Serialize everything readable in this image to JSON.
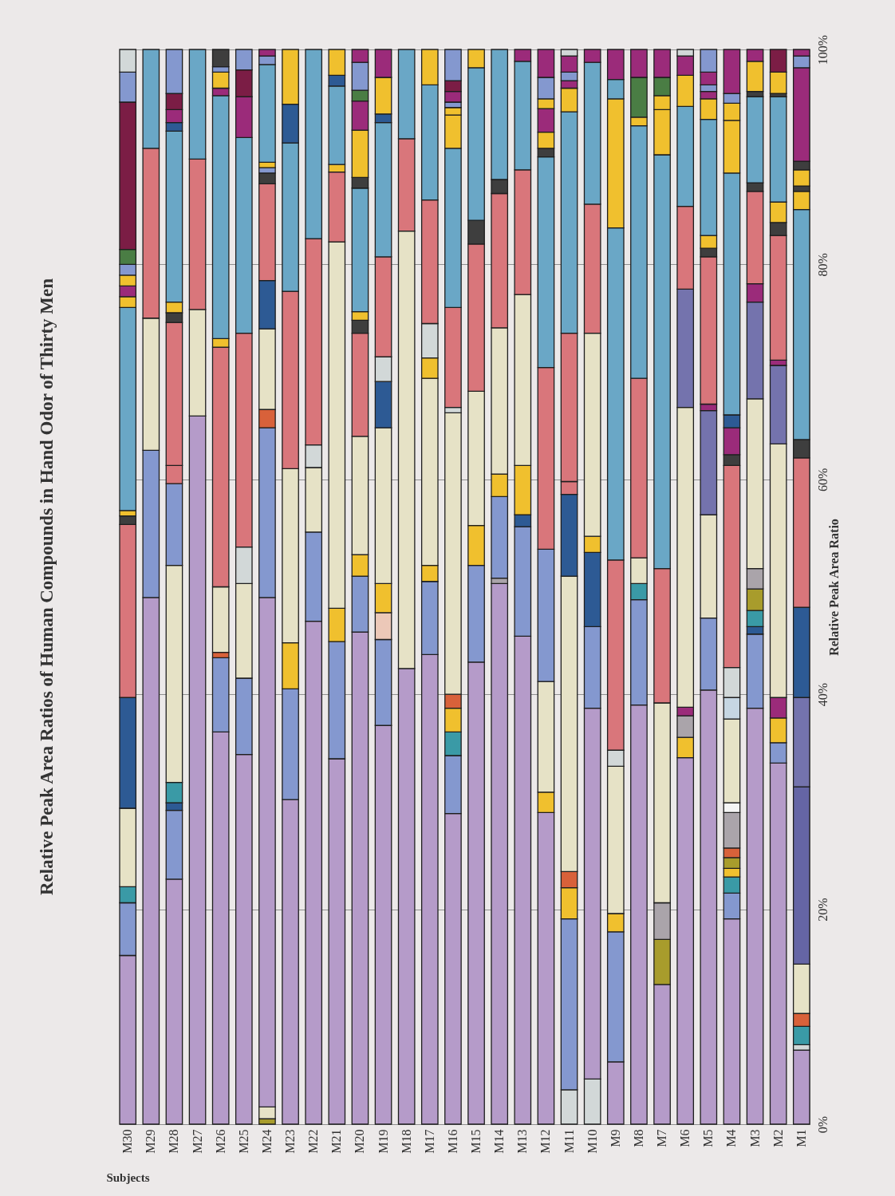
{
  "chart_data": {
    "type": "bar",
    "stacked": true,
    "title": "Relative Peak Area Ratios of Human Compounds in Hand Odor of Thirty Men",
    "xlabel": "Subjects",
    "ylabel": "Relative Peak Area Ratio",
    "categories": [
      "M30",
      "M29",
      "M28",
      "M27",
      "M26",
      "M25",
      "M24",
      "M23",
      "M22",
      "M21",
      "M20",
      "M19",
      "M18",
      "M17",
      "M16",
      "M15",
      "M14",
      "M13",
      "M12",
      "M11",
      "M10",
      "M9",
      "M8",
      "M7",
      "M6",
      "M5",
      "M4",
      "M3",
      "M2",
      "M1"
    ],
    "ylim": [
      0,
      100
    ],
    "yticks": [
      {
        "value": 0,
        "label": "0%"
      },
      {
        "value": 20,
        "label": "20%"
      },
      {
        "value": 40,
        "label": "40%"
      },
      {
        "value": 60,
        "label": "60%"
      },
      {
        "value": 80,
        "label": "80%"
      },
      {
        "value": 100,
        "label": "100%"
      }
    ],
    "grid": "y",
    "series": [
      {
        "values": [
          15.7,
          49.0,
          22.8,
          65.9,
          36.5,
          34.4,
          0.5,
          30.2,
          46.8,
          34.0,
          45.8,
          37.1,
          42.4,
          43.7,
          28.9,
          43.0,
          50.3,
          45.4,
          29.0,
          3.2,
          4.2,
          5.8,
          39.0,
          13.0,
          34.1,
          40.4,
          19.1,
          38.7,
          33.6,
          6.9
        ],
        "colors": [
          "#b59bc9",
          "#b59bc9",
          "#b59bc9",
          "#b59bc9",
          "#b59bc9",
          "#b59bc9",
          "#a89c2c",
          "#b59bc9",
          "#b59bc9",
          "#b59bc9",
          "#b59bc9",
          "#b59bc9",
          "#b59bc9",
          "#b59bc9",
          "#b59bc9",
          "#b59bc9",
          "#b59bc9",
          "#b59bc9",
          "#b59bc9",
          "#d2d8d8",
          "#d2d8d8",
          "#b59bc9",
          "#b59bc9",
          "#b59bc9",
          "#b59bc9",
          "#b59bc9",
          "#b59bc9",
          "#b59bc9",
          "#b59bc9",
          "#b59bc9"
        ]
      },
      {
        "values": [
          4.9,
          13.7,
          6.4,
          9.9,
          6.9,
          7.1,
          1.1,
          10.3,
          8.3,
          10.9,
          5.2,
          8.0,
          40.7,
          6.8,
          5.4,
          9.0,
          0.5,
          10.2,
          1.9,
          15.9,
          34.5,
          12.1,
          9.8,
          4.2,
          1.9,
          6.7,
          2.4,
          6.9,
          1.9,
          0.5
        ],
        "colors": [
          "#8498cf",
          "#8498cf",
          "#8498cf",
          "#e6e2c6",
          "#8498cf",
          "#8498cf",
          "#e6e2c6",
          "#8498cf",
          "#8498cf",
          "#8498cf",
          "#8498cf",
          "#8498cf",
          "#e6e2c6",
          "#8498cf",
          "#8498cf",
          "#8498cf",
          "#aaa4aa",
          "#8498cf",
          "#f0c02e",
          "#8498cf",
          "#b59bc9",
          "#8498cf",
          "#8498cf",
          "#a89c2c",
          "#f0c02e",
          "#8498cf",
          "#8498cf",
          "#8498cf",
          "#8498cf",
          "#d2d8d8"
        ]
      },
      {
        "values": [
          1.5,
          12.3,
          0.7,
          14.0,
          0.5,
          8.8,
          47.4,
          4.3,
          6.0,
          3.1,
          2.0,
          2.5,
          8.6,
          1.5,
          2.2,
          3.7,
          7.6,
          1.1,
          10.3,
          2.9,
          7.6,
          1.7,
          1.5,
          3.4,
          2.0,
          9.6,
          1.5,
          0.7,
          2.3,
          1.7
        ],
        "colors": [
          "#3a9aa6",
          "#e6e2c6",
          "#2d5a94",
          "#d9767b",
          "#d8613a",
          "#e6e2c6",
          "#b59bc9",
          "#f0c02e",
          "#e6e2c6",
          "#f0c02e",
          "#f0c02e",
          "#ecc8b8",
          "#d9767b",
          "#f0c02e",
          "#3a9aa6",
          "#f0c02e",
          "#8498cf",
          "#2d5a94",
          "#e6e2c6",
          "#f0c02e",
          "#8498cf",
          "#f0c02e",
          "#3a9aa6",
          "#aaa4aa",
          "#aaa4aa",
          "#e6e2c6",
          "#3a9aa6",
          "#2d5a94",
          "#f0c02e",
          "#3a9aa6"
        ]
      },
      {
        "values": [
          7.3,
          15.8,
          1.9,
          10.2,
          6.1,
          3.4,
          15.8,
          16.2,
          2.1,
          34.1,
          11.0,
          2.7,
          8.3,
          17.4,
          2.2,
          12.5,
          2.1,
          4.6,
          12.3,
          1.5,
          6.9,
          13.7,
          2.4,
          18.6,
          0.8,
          9.7,
          0.8,
          1.5,
          1.9,
          1.2
        ],
        "colors": [
          "#e6e2c6",
          "#d9767b",
          "#3a9aa6",
          "#6aa7c6",
          "#e6e2c6",
          "#d2d8d8",
          "#8498cf",
          "#e6e2c6",
          "#d2d8d8",
          "#e6e2c6",
          "#e6e2c6",
          "#f0c02e",
          "#6aa7c6",
          "#e6e2c6",
          "#f0c02e",
          "#e6e2c6",
          "#f0c02e",
          "#f0c02e",
          "#8498cf",
          "#d8613a",
          "#2d5a94",
          "#e6e2c6",
          "#e6e2c6",
          "#e6e2c6",
          "#9b2b7a",
          "#7473ad",
          "#f0c02e",
          "#3a9aa6",
          "#9b2b7a",
          "#d8613a"
        ]
      },
      {
        "values": [
          10.3,
          9.2,
          20.2,
          null,
          22.3,
          19.9,
          1.7,
          16.5,
          19.2,
          6.5,
          9.6,
          14.5,
          null,
          1.9,
          1.3,
          13.7,
          13.6,
          15.9,
          16.9,
          27.5,
          1.5,
          1.5,
          16.7,
          12.5,
          27.9,
          0.6,
          1.0,
          2.0,
          23.6,
          4.6
        ],
        "colors": [
          "#2d5a94",
          "#6aa7c6",
          "#e6e2c6",
          null,
          "#d9767b",
          "#d9767b",
          "#d8613a",
          "#d9767b",
          "#d9767b",
          "#d9767b",
          "#d9767b",
          "#e6e2c6",
          null,
          "#f0c02e",
          "#d8613a",
          "#d9767b",
          "#e6e2c6",
          "#e6e2c6",
          "#d9767b",
          "#e6e2c6",
          "#f0c02e",
          "#d2d8d8",
          "#d9767b",
          "#d9767b",
          "#e6e2c6",
          "#9b2b7a",
          "#a89c2c",
          "#a89c2c",
          "#e6e2c6",
          "#e6e2c6"
        ]
      },
      {
        "values": [
          16.1,
          null,
          7.6,
          null,
          0.8,
          18.2,
          7.5,
          13.8,
          17.6,
          0.7,
          1.2,
          4.3,
          null,
          3.2,
          26.2,
          2.2,
          12.5,
          11.6,
          19.6,
          7.6,
          18.9,
          17.7,
          23.5,
          38.5,
          11.0,
          13.7,
          0.9,
          1.9,
          7.3,
          16.5
        ],
        "colors": [
          "#d9767b",
          null,
          "#8498cf",
          null,
          "#f0c02e",
          "#6aa7c6",
          "#e6e2c6",
          "#6aa7c6",
          "#6aa7c6",
          "#f0c02e",
          "#3e3e3e",
          "#2d5a94",
          null,
          "#d2d8d8",
          "#e6e2c6",
          "#3e3e3e",
          "#d9767b",
          "#d9767b",
          "#6aa7c6",
          "#2d5a94",
          "#e6e2c6",
          "#d9767b",
          "#6aa7c6",
          "#6aa7c6",
          "#7473ad",
          "#d9767b",
          "#d8613a",
          "#aaa4aa",
          "#7473ad",
          "#6565a5"
        ]
      },
      {
        "values": [
          0.8,
          null,
          1.7,
          null,
          22.6,
          3.8,
          4.5,
          3.6,
          null,
          7.3,
          0.8,
          2.3,
          null,
          11.5,
          0.5,
          14.2,
          1.3,
          10.1,
          0.8,
          1.2,
          12.0,
          30.9,
          0.8,
          4.2,
          7.7,
          0.8,
          3.3,
          15.8,
          0.5,
          8.3
        ],
        "colors": [
          "#3e3e3e",
          null,
          "#d9767b",
          null,
          "#6aa7c6",
          "#9b2b7a",
          "#2d5a94",
          "#2d5a94",
          null,
          "#6aa7c6",
          "#f0c02e",
          "#d2d8d8",
          null,
          "#d9767b",
          "#d2d8d8",
          "#6aa7c6",
          "#3e3e3e",
          "#6aa7c6",
          "#3e3e3e",
          "#d9767b",
          "#d9767b",
          "#6aa7c6",
          "#f0c02e",
          "#f0c02e",
          "#d9767b",
          "#3e3e3e",
          "#aaa4aa",
          "#e6e2c6",
          "#9b2b7a",
          "#7473ad"
        ]
      },
      {
        "values": [
          0.5,
          null,
          13.3,
          null,
          0.7,
          2.5,
          9.0,
          5.1,
          null,
          1.0,
          11.5,
          9.3,
          null,
          10.7,
          9.3,
          1.7,
          12.1,
          1.1,
          1.5,
          13.8,
          13.2,
          12.0,
          3.7,
          1.3,
          9.3,
          1.2,
          0.9,
          9.0,
          11.6,
          8.4
        ],
        "colors": [
          "#f0c02e",
          null,
          "#d9767b",
          null,
          "#9b2b7a",
          "#7b1d45",
          "#d9767b",
          "#f0c02e",
          null,
          "#2d5a94",
          "#6aa7c6",
          "#d9767b",
          null,
          "#6aa7c6",
          "#d9767b",
          "#f0c02e",
          "#6aa7c6",
          "#9b2b7a",
          "#f0c02e",
          "#d9767b",
          "#6aa7c6",
          "#f0c02e",
          "#4a7d44",
          "#f0c02e",
          "#6aa7c6",
          "#f0c02e",
          "#f5f5f5",
          "#7473ad",
          "#d9767b",
          "#2d5a94"
        ]
      },
      {
        "values": [
          18.9,
          null,
          0.9,
          null,
          1.5,
          1.9,
          1.0,
          null,
          null,
          2.4,
          1.0,
          12.5,
          null,
          3.3,
          14.8,
          null,
          null,
          null,
          2.2,
          20.6,
          1.2,
          1.8,
          2.6,
          1.7,
          2.9,
          10.8,
          7.8,
          1.7,
          1.2,
          13.9
        ],
        "colors": [
          "#6aa7c6",
          null,
          "#3e3e3e",
          null,
          "#f0c02e",
          "#8498cf",
          "#3e3e3e",
          null,
          null,
          "#f0c02e",
          "#3e3e3e",
          "#6aa7c6",
          null,
          "#f0c02e",
          "#6aa7c6",
          null,
          null,
          null,
          "#9b2b7a",
          "#6aa7c6",
          "#9b2b7a",
          "#6aa7c6",
          "#9b2b7a",
          "#4a7d44",
          "#f0c02e",
          "#6aa7c6",
          "#e6e2c6",
          "#9b2b7a",
          "#3e3e3e",
          "#d9767b"
        ]
      },
      {
        "values": [
          1.0,
          null,
          1.0,
          null,
          0.5,
          null,
          0.5,
          null,
          null,
          null,
          4.4,
          0.8,
          null,
          null,
          3.1,
          null,
          null,
          null,
          0.9,
          2.2,
          null,
          2.8,
          null,
          2.6,
          1.8,
          1.9,
          2.0,
          8.6,
          1.9,
          1.7
        ],
        "colors": [
          "#f0c02e",
          null,
          "#f0c02e",
          null,
          "#8498cf",
          null,
          "#8498cf",
          null,
          null,
          null,
          "#f0c02e",
          "#2d5a94",
          null,
          null,
          "#f0c02e",
          null,
          null,
          null,
          "#f0c02e",
          "#f0c02e",
          null,
          "#9b2b7a",
          null,
          "#9b2b7a",
          "#9b2b7a",
          "#f0c02e",
          "#c6d6e2",
          "#d9767b",
          "#f0c02e",
          "#3e3e3e"
        ]
      },
      {
        "values": [
          1.0,
          null,
          15.9,
          null,
          1.6,
          null,
          0.5,
          null,
          null,
          null,
          2.7,
          3.4,
          null,
          null,
          0.7,
          null,
          null,
          null,
          2.0,
          0.7,
          null,
          null,
          null,
          null,
          0.6,
          0.7,
          2.8,
          0.8,
          9.8,
          21.4
        ],
        "colors": [
          "#9b2b7a",
          null,
          "#6aa7c6",
          null,
          "#3e3e3e",
          null,
          "#f0c02e",
          null,
          null,
          null,
          "#9b2b7a",
          "#f0c02e",
          null,
          null,
          "#f0c02e",
          null,
          null,
          null,
          "#8498cf",
          "#9b2b7a",
          null,
          null,
          null,
          null,
          "#d2d8d8",
          "#9b2b7a",
          "#d2d8d8",
          "#3e3e3e",
          "#6aa7c6",
          "#6aa7c6"
        ]
      },
      {
        "values": [
          1.0,
          null,
          0.8,
          null,
          null,
          null,
          9.1,
          null,
          null,
          null,
          1.0,
          2.6,
          null,
          null,
          0.5,
          null,
          null,
          null,
          2.6,
          0.8,
          null,
          null,
          null,
          null,
          null,
          0.6,
          18.8,
          8.0,
          0.3,
          1.7
        ],
        "colors": [
          "#f0c02e",
          null,
          "#2d5a94",
          null,
          null,
          null,
          "#6aa7c6",
          null,
          null,
          null,
          "#4a7d44",
          "#9b2b7a",
          null,
          null,
          "#8498cf",
          null,
          null,
          null,
          "#9b2b7a",
          "#8498cf",
          null,
          null,
          null,
          null,
          null,
          "#8498cf",
          "#d9767b",
          "#6aa7c6",
          "#3e3e3e",
          "#f0c02e"
        ]
      },
      {
        "values": [
          1.0,
          null,
          1.2,
          null,
          null,
          null,
          0.8,
          null,
          null,
          null,
          2.6,
          null,
          null,
          null,
          1.0,
          null,
          null,
          null,
          null,
          1.5,
          null,
          null,
          null,
          null,
          null,
          1.2,
          1.0,
          0.5,
          2.0,
          0.5
        ],
        "colors": [
          "#8498cf",
          null,
          "#9b2b7a",
          null,
          null,
          null,
          "#8498cf",
          null,
          null,
          null,
          "#8498cf",
          null,
          null,
          null,
          "#9b2b7a",
          null,
          null,
          null,
          null,
          "#9b2b7a",
          null,
          null,
          null,
          null,
          null,
          "#9b2b7a",
          "#3e3e3e",
          "#3e3e3e",
          "#f0c02e",
          "#3e3e3e"
        ]
      },
      {
        "values": [
          1.4,
          null,
          1.5,
          null,
          null,
          null,
          0.6,
          null,
          null,
          null,
          1.2,
          null,
          null,
          null,
          1.0,
          null,
          null,
          null,
          null,
          0.6,
          null,
          null,
          null,
          null,
          null,
          2.1,
          2.5,
          2.8,
          2.1,
          1.5
        ],
        "colors": [
          "#4a7d44",
          null,
          "#7b1d45",
          null,
          null,
          null,
          "#9b2b7a",
          null,
          null,
          null,
          "#9b2b7a",
          null,
          null,
          null,
          "#7b1d45",
          null,
          null,
          null,
          null,
          "#d2d8d8",
          null,
          null,
          null,
          null,
          null,
          "#8498cf",
          "#9b2b7a",
          "#f0c02e",
          "#7b1d45",
          "#f0c02e"
        ]
      },
      {
        "values": [
          13.7,
          null,
          4.1,
          null,
          null,
          null,
          null,
          null,
          null,
          null,
          null,
          null,
          null,
          null,
          2.9,
          null,
          null,
          null,
          null,
          null,
          null,
          null,
          null,
          null,
          null,
          null,
          1.2,
          1.1,
          null,
          0.8
        ],
        "colors": [
          "#7b1d45",
          null,
          "#8498cf",
          null,
          null,
          null,
          null,
          null,
          null,
          null,
          null,
          null,
          null,
          null,
          "#8498cf",
          null,
          null,
          null,
          null,
          null,
          null,
          null,
          null,
          null,
          null,
          null,
          "#2d5a94",
          "#9b2b7a",
          null,
          "#3e3e3e"
        ]
      },
      {
        "values": [
          2.8,
          null,
          null,
          null,
          null,
          null,
          null,
          null,
          null,
          null,
          null,
          null,
          null,
          null,
          null,
          null,
          null,
          null,
          null,
          null,
          null,
          null,
          null,
          null,
          null,
          null,
          22.5,
          null,
          null,
          8.7
        ],
        "colors": [
          "#8498cf",
          null,
          null,
          null,
          null,
          null,
          null,
          null,
          null,
          null,
          null,
          null,
          null,
          null,
          null,
          null,
          null,
          null,
          null,
          null,
          null,
          null,
          null,
          null,
          null,
          null,
          "#6aa7c6",
          null,
          null,
          "#9b2b7a"
        ]
      },
      {
        "values": [
          2.1,
          null,
          null,
          null,
          null,
          null,
          null,
          null,
          null,
          null,
          null,
          null,
          null,
          null,
          null,
          null,
          null,
          null,
          null,
          null,
          null,
          null,
          null,
          null,
          null,
          null,
          4.9,
          null,
          null,
          1.1
        ],
        "colors": [
          "#d2d8d8",
          null,
          null,
          null,
          null,
          null,
          null,
          null,
          null,
          null,
          null,
          null,
          null,
          null,
          null,
          null,
          null,
          null,
          null,
          null,
          null,
          null,
          null,
          null,
          null,
          null,
          "#f0c02e",
          null,
          null,
          "#8498cf"
        ]
      },
      {
        "values": [
          null,
          null,
          null,
          null,
          null,
          null,
          null,
          null,
          null,
          null,
          null,
          null,
          null,
          null,
          null,
          null,
          null,
          null,
          null,
          null,
          null,
          null,
          null,
          null,
          null,
          null,
          1.6,
          null,
          null,
          0.6
        ],
        "colors": [
          null,
          null,
          null,
          null,
          null,
          null,
          null,
          null,
          null,
          null,
          null,
          null,
          null,
          null,
          null,
          null,
          null,
          null,
          null,
          null,
          null,
          null,
          null,
          null,
          null,
          null,
          "#f0c02e",
          null,
          null,
          "#9b2b7a"
        ]
      },
      {
        "values": [
          null,
          null,
          null,
          null,
          null,
          null,
          null,
          null,
          null,
          null,
          null,
          null,
          null,
          null,
          null,
          null,
          null,
          null,
          null,
          null,
          null,
          null,
          null,
          null,
          null,
          null,
          0.9,
          null,
          null,
          null
        ],
        "colors": [
          null,
          null,
          null,
          null,
          null,
          null,
          null,
          null,
          null,
          null,
          null,
          null,
          null,
          null,
          null,
          null,
          null,
          null,
          null,
          null,
          null,
          null,
          null,
          null,
          null,
          null,
          "#8498cf",
          null,
          null,
          null
        ]
      },
      {
        "values": [
          null,
          null,
          null,
          null,
          null,
          null,
          null,
          null,
          null,
          null,
          null,
          null,
          null,
          null,
          null,
          null,
          null,
          null,
          null,
          null,
          null,
          null,
          null,
          null,
          null,
          null,
          4.1,
          null,
          null,
          null
        ],
        "colors": [
          null,
          null,
          null,
          null,
          null,
          null,
          null,
          null,
          null,
          null,
          null,
          null,
          null,
          null,
          null,
          null,
          null,
          null,
          null,
          null,
          null,
          null,
          null,
          null,
          null,
          null,
          "#9b2b7a",
          null,
          null,
          null
        ]
      }
    ]
  }
}
